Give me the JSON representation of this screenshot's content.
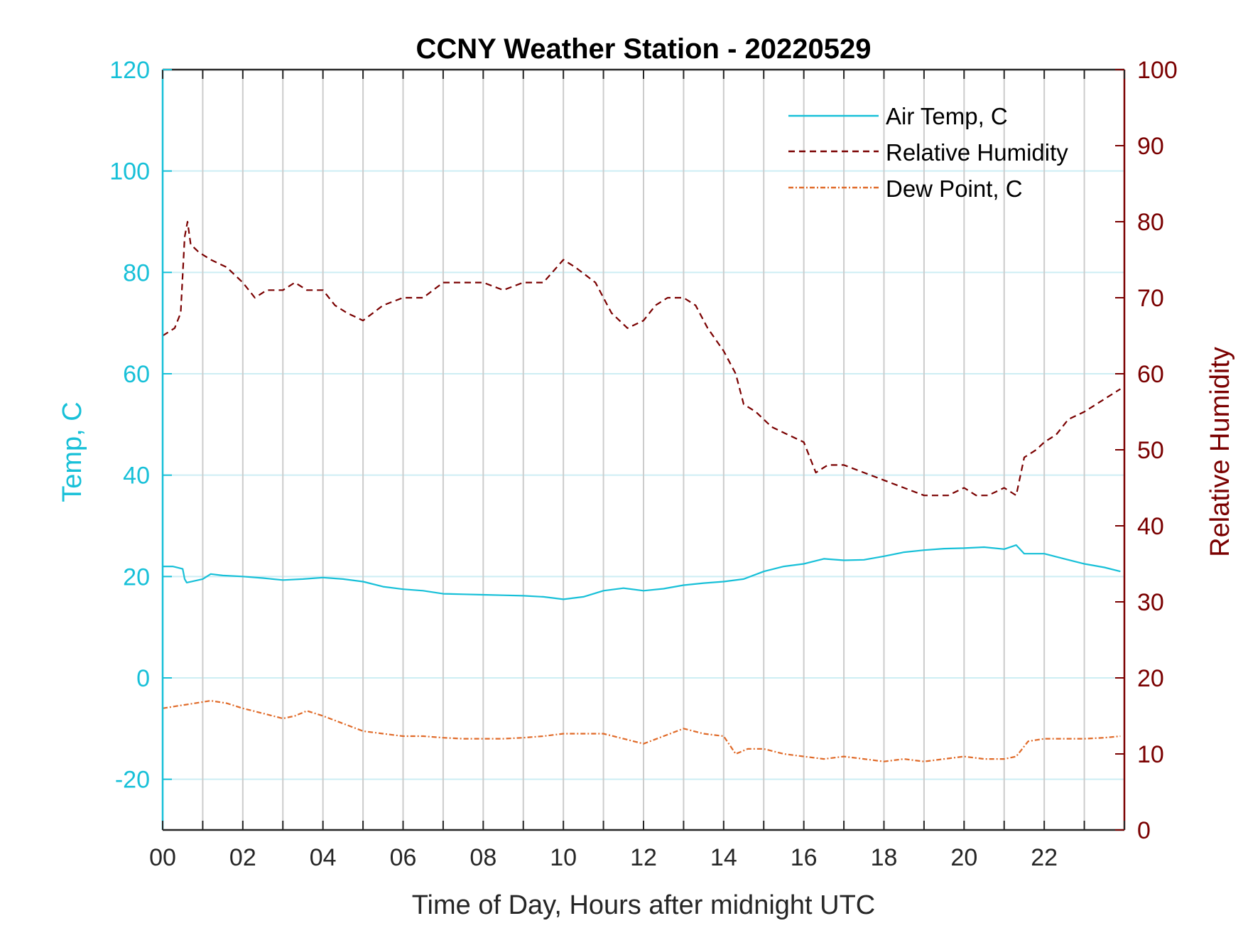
{
  "chart_data": {
    "type": "line",
    "title": "CCNY Weather Station - 20220529",
    "xlabel": "Time of Day, Hours after midnight UTC",
    "ylabel_left": "Temp, C",
    "ylabel_right": "Relative Humidity",
    "xlim": [
      0,
      24
    ],
    "ylim_left": [
      -30,
      120
    ],
    "ylim_right": [
      0,
      100
    ],
    "x_tick_labels": [
      "00",
      "02",
      "04",
      "06",
      "08",
      "10",
      "12",
      "14",
      "16",
      "18",
      "20",
      "22"
    ],
    "y_left_tick_labels": [
      "-20",
      "0",
      "20",
      "40",
      "60",
      "80",
      "100",
      "120"
    ],
    "y_right_tick_labels": [
      "0",
      "10",
      "20",
      "30",
      "40",
      "50",
      "60",
      "70",
      "80",
      "90",
      "100"
    ],
    "grid": true,
    "legend_position": "top-right",
    "colors": {
      "temp": "#17c0d8",
      "humidity": "#7a0000",
      "dew": "#e06a28",
      "grid_x": "#cccccc",
      "grid_y": "#cdeef4"
    },
    "series": [
      {
        "name": "Air Temp, C",
        "axis": "left",
        "style": "solid",
        "x": [
          0,
          0.25,
          0.5,
          0.55,
          0.6,
          1,
          1.2,
          1.5,
          2,
          2.5,
          3,
          3.5,
          4,
          4.5,
          5,
          5.5,
          6,
          6.5,
          7,
          7.5,
          8,
          8.5,
          9,
          9.5,
          10,
          10.5,
          11,
          11.5,
          12,
          12.5,
          13,
          13.5,
          14,
          14.5,
          15,
          15.5,
          16,
          16.5,
          17,
          17.5,
          18,
          18.5,
          19,
          19.5,
          20,
          20.5,
          21,
          21.3,
          21.5,
          22,
          22.5,
          23,
          23.5,
          23.9
        ],
        "y": [
          22,
          22,
          21.5,
          19.5,
          18.8,
          19.5,
          20.5,
          20.2,
          20,
          19.7,
          19.3,
          19.5,
          19.8,
          19.5,
          19,
          18,
          17.5,
          17.2,
          16.6,
          16.5,
          16.4,
          16.3,
          16.2,
          16,
          15.5,
          16,
          17.2,
          17.7,
          17.2,
          17.6,
          18.3,
          18.7,
          19,
          19.5,
          21,
          22,
          22.5,
          23.5,
          23.2,
          23.3,
          24,
          24.8,
          25.2,
          25.5,
          25.6,
          25.8,
          25.4,
          26.2,
          24.5,
          24.5,
          23.5,
          22.5,
          21.8,
          21
        ]
      },
      {
        "name": "Relative Humidity",
        "axis": "right",
        "style": "dashed",
        "x": [
          0,
          0.3,
          0.45,
          0.55,
          0.62,
          0.7,
          0.9,
          1.2,
          1.6,
          2,
          2.3,
          2.6,
          3,
          3.3,
          3.6,
          4,
          4.3,
          4.6,
          5,
          5.5,
          6,
          6.5,
          7,
          7.5,
          8,
          8.5,
          9,
          9.5,
          10,
          10.3,
          10.8,
          11.2,
          11.6,
          12,
          12.3,
          12.6,
          13,
          13.3,
          13.6,
          14,
          14.3,
          14.5,
          14.8,
          15.2,
          15.6,
          16,
          16.3,
          16.6,
          17,
          17.5,
          18,
          18.5,
          19,
          19.3,
          19.6,
          20,
          20.3,
          20.6,
          21,
          21.3,
          21.5,
          21.8,
          22,
          22.3,
          22.6,
          23,
          23.3,
          23.6,
          23.9
        ],
        "y": [
          65,
          66,
          68,
          78,
          80,
          77,
          76,
          75,
          74,
          72,
          70,
          71,
          71,
          72,
          71,
          71,
          69,
          68,
          67,
          69,
          70,
          70,
          72,
          72,
          72,
          71,
          72,
          72,
          75,
          74,
          72,
          68,
          66,
          67,
          69,
          70,
          70,
          69,
          66,
          63,
          60,
          56,
          55,
          53,
          52,
          51,
          47,
          48,
          48,
          47,
          46,
          45,
          44,
          44,
          44,
          45,
          44,
          44,
          45,
          44,
          49,
          50,
          51,
          52,
          54,
          55,
          56,
          57,
          58
        ]
      },
      {
        "name": "Dew Point, C",
        "axis": "left",
        "style": "dash-dot",
        "x": [
          0,
          0.4,
          0.8,
          1.2,
          1.6,
          2,
          2.5,
          3,
          3.3,
          3.6,
          4,
          4.5,
          5,
          5.5,
          6,
          6.5,
          7,
          7.5,
          8,
          8.5,
          9,
          9.5,
          10,
          10.5,
          11,
          11.5,
          12,
          12.5,
          13,
          13.5,
          14,
          14.3,
          14.6,
          15,
          15.5,
          16,
          16.5,
          17,
          17.5,
          18,
          18.5,
          19,
          19.5,
          20,
          20.5,
          21,
          21.3,
          21.6,
          22,
          22.5,
          23,
          23.5,
          23.9
        ],
        "y": [
          -6,
          -5.5,
          -5,
          -4.5,
          -5,
          -6,
          -7,
          -8,
          -7.5,
          -6.5,
          -7.5,
          -9,
          -10.5,
          -11,
          -11.5,
          -11.5,
          -11.8,
          -12,
          -12,
          -12,
          -11.8,
          -11.5,
          -11,
          -11,
          -11,
          -12,
          -13,
          -11.5,
          -10,
          -11,
          -11.5,
          -15,
          -14,
          -14,
          -15,
          -15.5,
          -16,
          -15.5,
          -16,
          -16.5,
          -16,
          -16.5,
          -16,
          -15.5,
          -16,
          -16,
          -15.5,
          -12.5,
          -12,
          -12,
          -12,
          -11.8,
          -11.5
        ]
      }
    ]
  }
}
